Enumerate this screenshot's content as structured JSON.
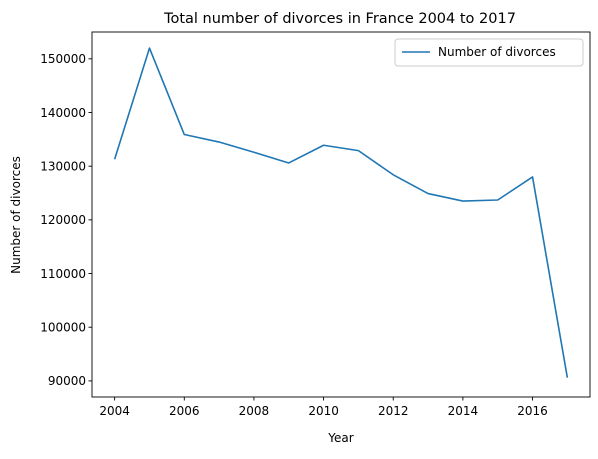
{
  "chart_data": {
    "type": "line",
    "title": "Total number of divorces in France 2004 to 2017",
    "xlabel": "Year",
    "ylabel": "Number of divorces",
    "xlim": [
      2003.35,
      2017.65
    ],
    "ylim": [
      87000,
      155000
    ],
    "x_ticks": [
      2004,
      2006,
      2008,
      2010,
      2012,
      2014,
      2016
    ],
    "y_ticks": [
      90000,
      100000,
      110000,
      120000,
      130000,
      140000,
      150000
    ],
    "grid": false,
    "legend_position": "top-right",
    "line_color": "#1f77b4",
    "series": [
      {
        "name": "Number of divorces",
        "x": [
          2004,
          2005,
          2006,
          2007,
          2008,
          2009,
          2010,
          2011,
          2012,
          2013,
          2014,
          2015,
          2016,
          2017
        ],
        "y": [
          131300,
          152000,
          135900,
          134500,
          132600,
          130600,
          133900,
          132900,
          128400,
          124900,
          123500,
          123700,
          128000,
          90600
        ]
      }
    ]
  }
}
